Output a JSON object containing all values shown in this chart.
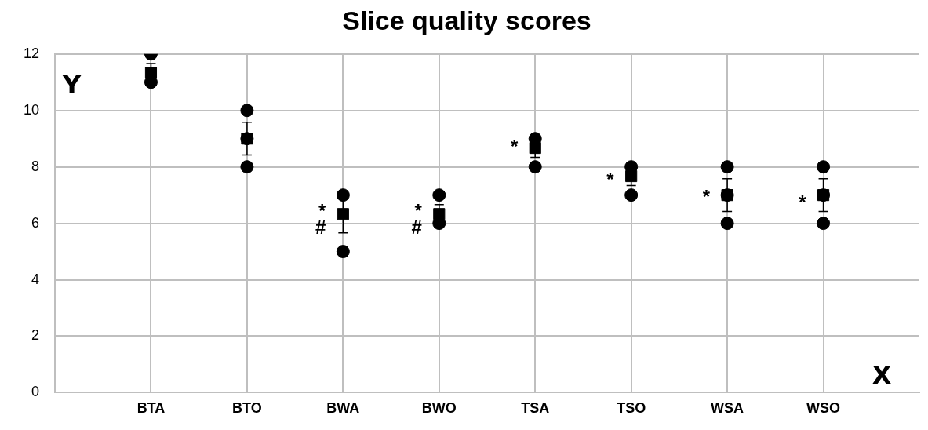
{
  "chart_data": {
    "type": "scatter",
    "title": "Slice quality scores",
    "xlabel": "X",
    "ylabel": "Y",
    "categories": [
      "BTA",
      "BTO",
      "BWA",
      "BWO",
      "TSA",
      "TSO",
      "WSA",
      "WSO"
    ],
    "series": [
      {
        "color": "#000000",
        "marker": "circle",
        "x": [
          "BTA",
          "BTA",
          "BTA",
          "BTO",
          "BTO",
          "BTO",
          "BWA",
          "BWA",
          "BWA",
          "BWO",
          "BWO",
          "BWO",
          "TSA",
          "TSA",
          "TSA",
          "TSO",
          "TSO",
          "TSO",
          "WSA",
          "WSA",
          "WSA",
          "WSO",
          "WSO",
          "WSO"
        ],
        "values": [
          12,
          11,
          null,
          10,
          9,
          8,
          7,
          null,
          5,
          7,
          6,
          null,
          9,
          null,
          8,
          8,
          null,
          7,
          8,
          7,
          6,
          8,
          7,
          6
        ]
      },
      {
        "color": "#000000",
        "marker": "square",
        "values": [
          11.33,
          9,
          6.33,
          6.33,
          8.67,
          7.67,
          7,
          7
        ],
        "errors": [
          0.33,
          0.58,
          0.67,
          0.33,
          0.33,
          0.33,
          0.58,
          0.58
        ]
      }
    ],
    "annotations": [
      {
        "text": "*",
        "x": "BWA",
        "y": 6.4
      },
      {
        "text": "#",
        "x": "BWA",
        "y": 5.8
      },
      {
        "text": "*",
        "x": "BWO",
        "y": 6.4
      },
      {
        "text": "#",
        "x": "BWO",
        "y": 5.8
      },
      {
        "text": "*",
        "x": "TSA",
        "y": 8.67
      },
      {
        "text": "*",
        "x": "TSO",
        "y": 7.5
      },
      {
        "text": "*",
        "x": "WSA",
        "y": 6.9
      },
      {
        "text": "*",
        "x": "WSO",
        "y": 6.7
      }
    ],
    "ylim": [
      0,
      12
    ],
    "yticks": [
      0,
      2,
      4,
      6,
      8,
      10,
      12
    ],
    "grid": true,
    "legend": false
  }
}
